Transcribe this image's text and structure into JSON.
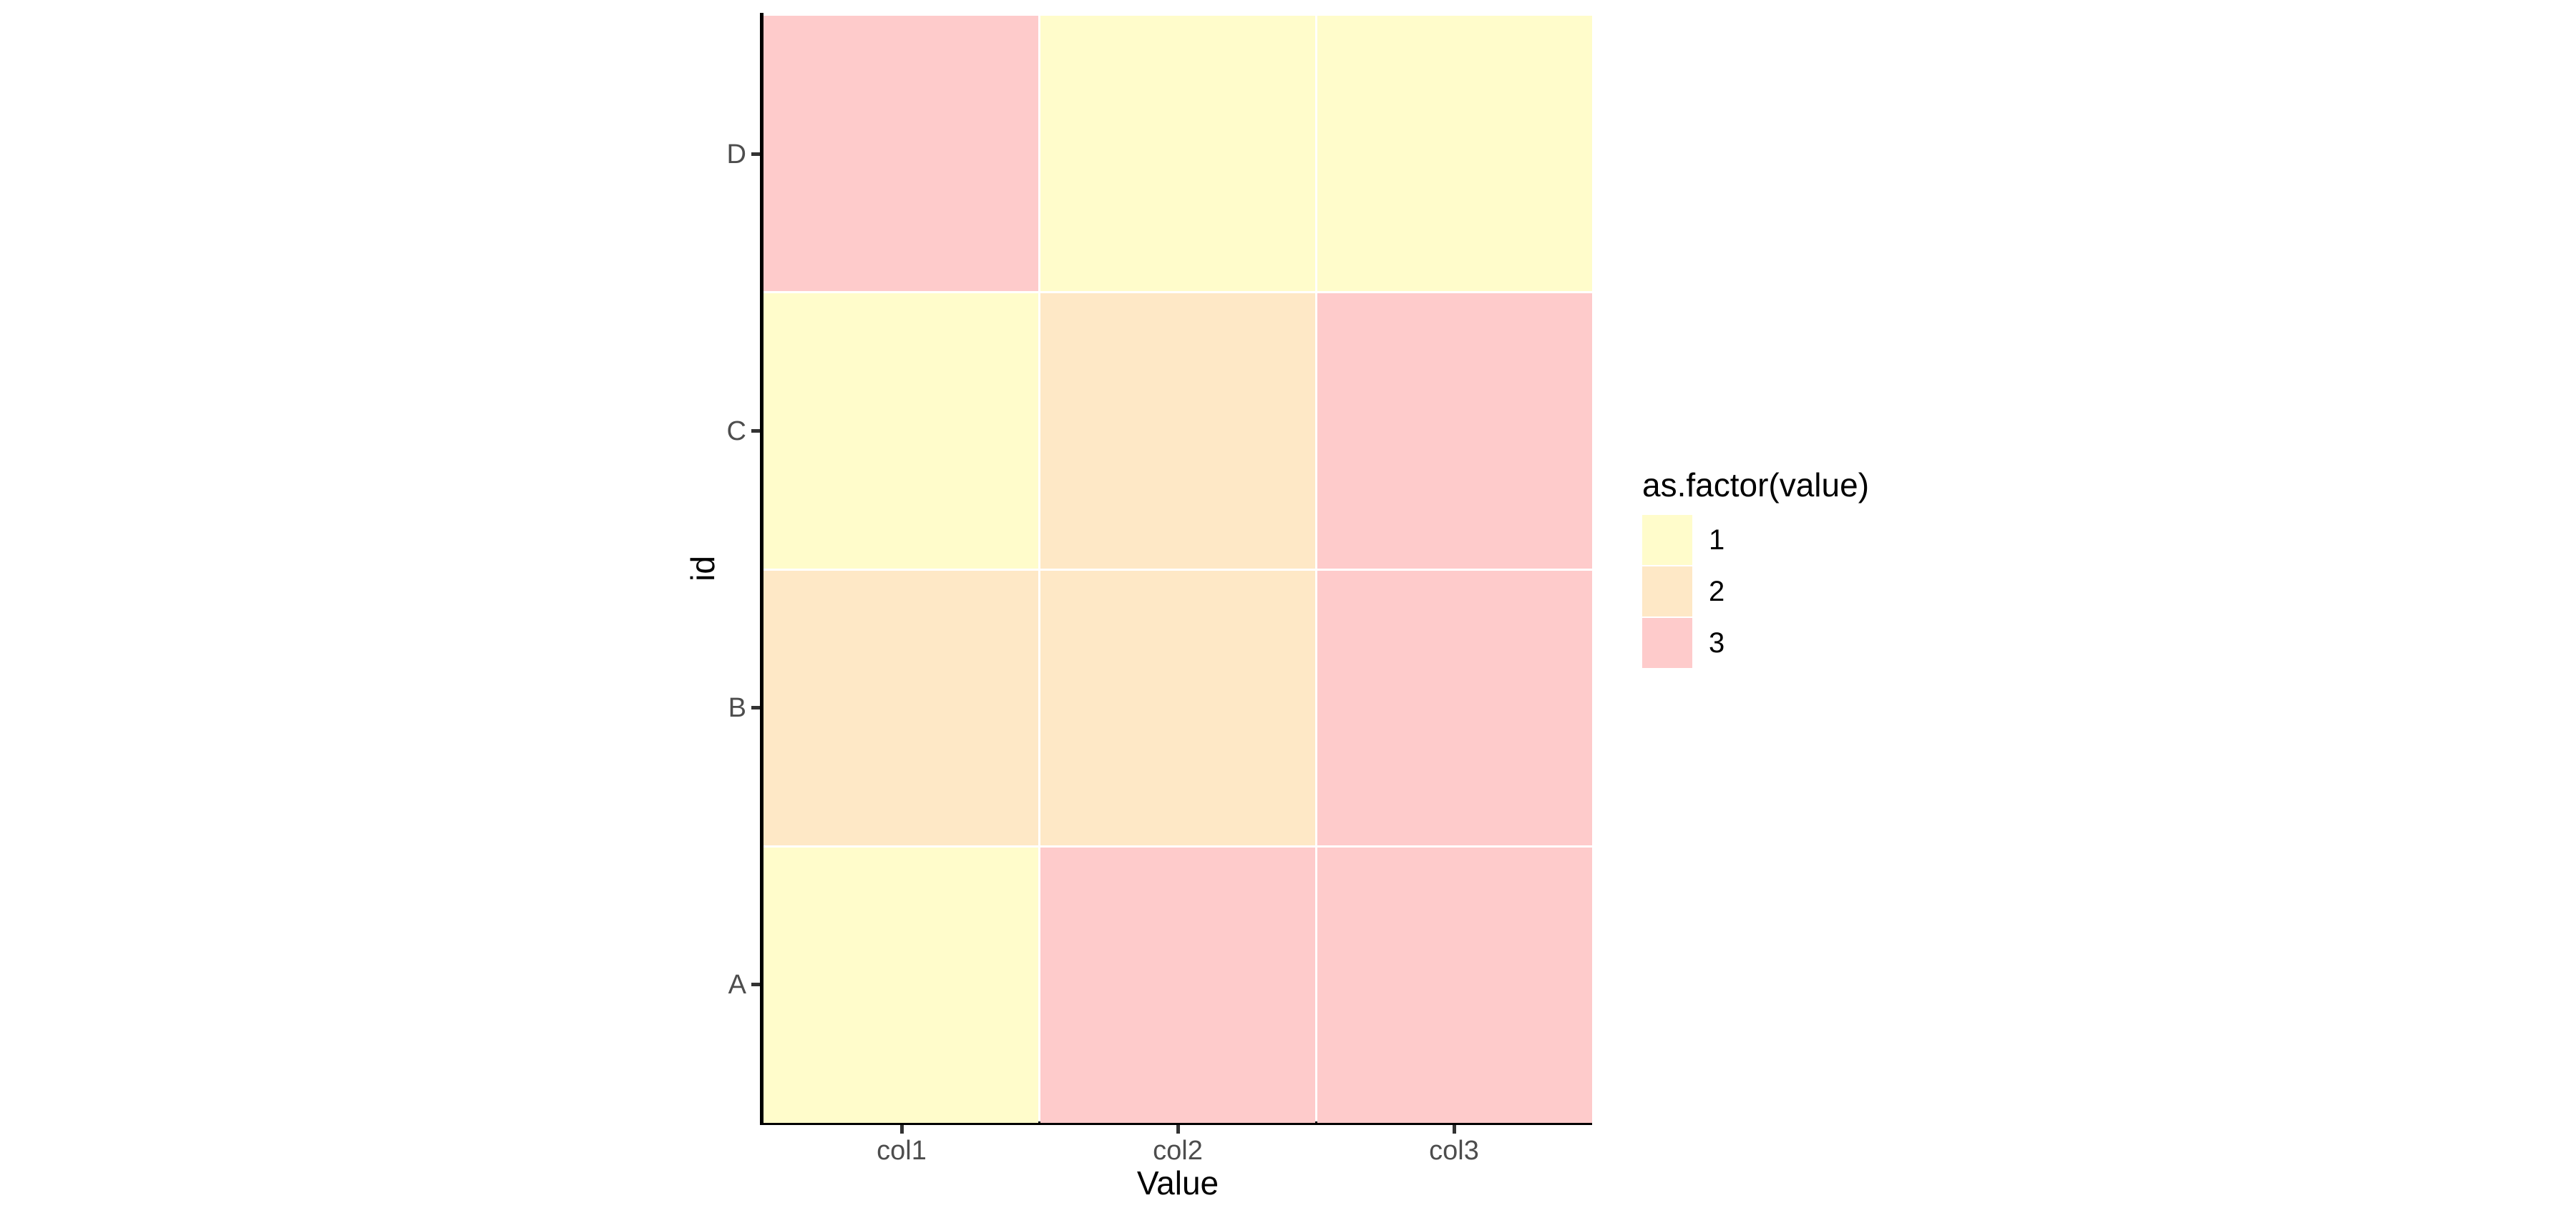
{
  "figure": {
    "background": "#ffffff"
  },
  "chart_data": {
    "type": "heatmap",
    "title": "",
    "xlabel": "Value",
    "ylabel": "id",
    "x_categories": [
      "col1",
      "col2",
      "col3"
    ],
    "y_categories": [
      "D",
      "C",
      "B",
      "A"
    ],
    "grid_values": [
      [
        3,
        1,
        1
      ],
      [
        1,
        2,
        3
      ],
      [
        2,
        2,
        3
      ],
      [
        1,
        3,
        3
      ]
    ],
    "palette": {
      "1": "#FFFCCB",
      "2": "#FEE8C6",
      "3": "#FECBCB"
    },
    "legend": {
      "title": "as.factor(value)",
      "position": "right",
      "entries": [
        {
          "label": "1",
          "color": "#FFFCCB"
        },
        {
          "label": "2",
          "color": "#FEE8C6"
        },
        {
          "label": "3",
          "color": "#FECBCB"
        }
      ]
    },
    "axis_style": {
      "line_color": "#000000",
      "tick_color": "#333333",
      "tick_label_color": "#4d4d4d",
      "title_color": "#000000"
    },
    "grid_on": false
  }
}
